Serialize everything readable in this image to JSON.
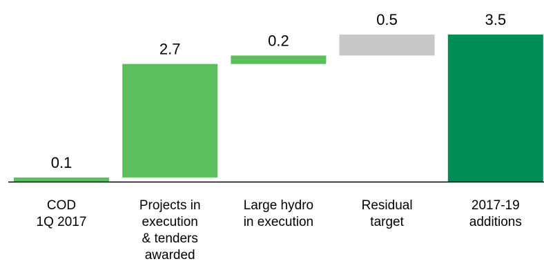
{
  "chart_data": {
    "type": "waterfall",
    "categories": [
      "COD\n1Q 2017",
      "Projects in\nexecution\n& tenders\nawarded",
      "Large hydro\nin execution",
      "Residual\ntarget",
      "2017-19\nadditions"
    ],
    "values": [
      0.1,
      2.7,
      0.2,
      0.5,
      3.5
    ],
    "total": [
      false,
      false,
      false,
      false,
      true
    ],
    "colors": [
      "#5bbf5e",
      "#5bbf5e",
      "#5bbf5e",
      "#c8c8c8",
      "#008c55"
    ]
  }
}
